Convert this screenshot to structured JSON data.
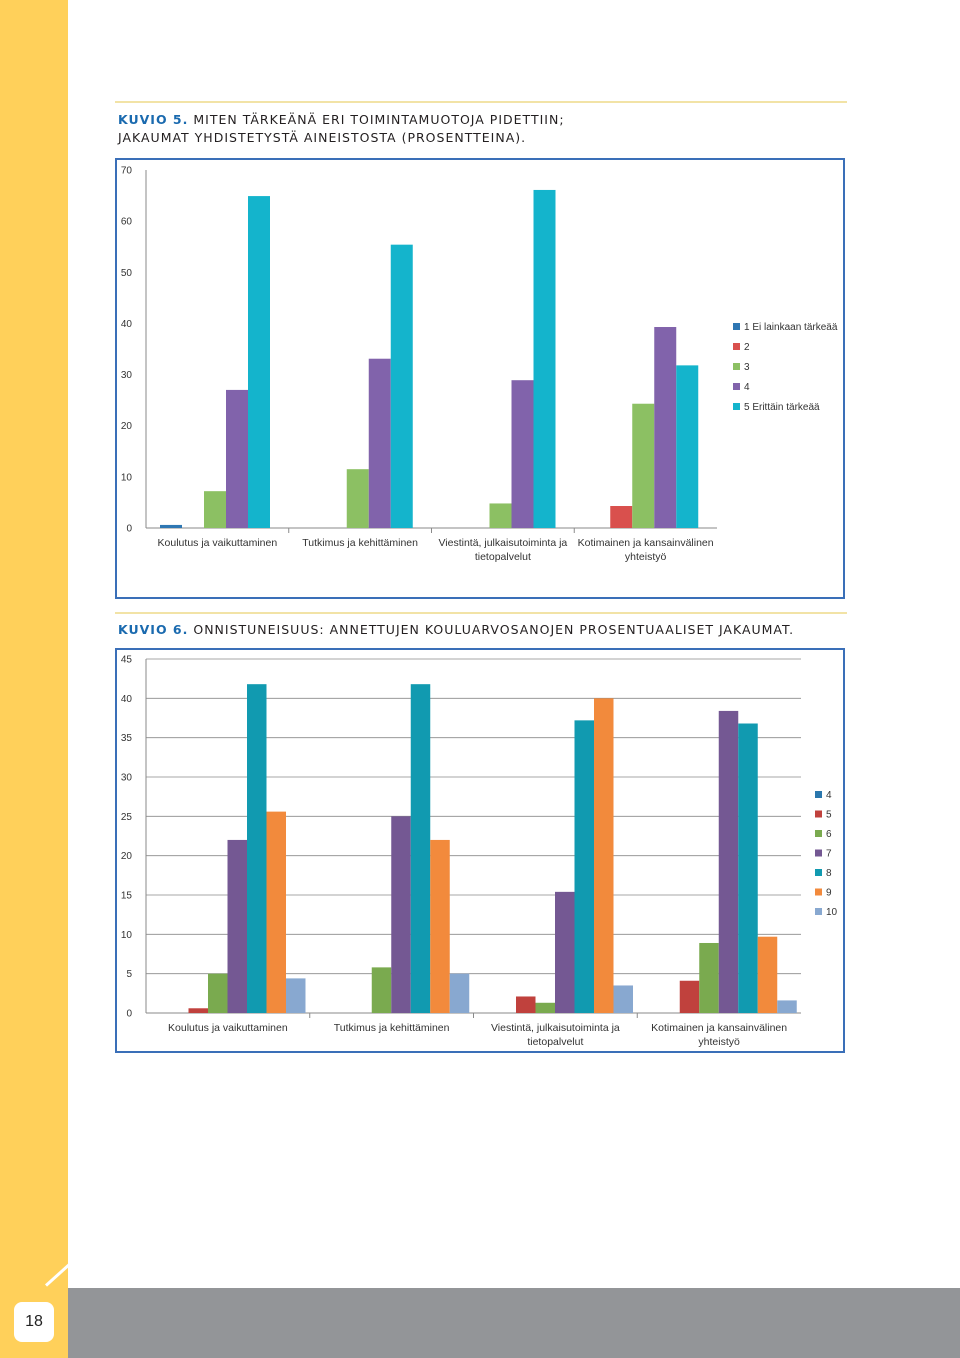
{
  "page": {
    "number": "18"
  },
  "figures": [
    {
      "kuvio": "KUVIO 5.",
      "caption_line1": "MITEN TÄRKEÄNÄ ERI TOIMINTAMUOTOJA PIDETTIIN;",
      "caption_line2": "JAKAUMAT YHDISTETYSTÄ AINEISTOSTA (PROSENTTEINA)."
    },
    {
      "kuvio": "KUVIO 6.",
      "caption_line1": "ONNISTUNEISUUS: ANNETTUJEN KOULUARVOSANOJEN PROSENTUAALISET JAKAUMAT.",
      "caption_line2": ""
    }
  ],
  "chart_data": [
    {
      "type": "bar",
      "categories": [
        [
          "Koulutus ja vaikuttaminen"
        ],
        [
          "Tutkimus ja kehittäminen"
        ],
        [
          "Viestintä, julkaisutoiminta ja",
          "tietopalvelut"
        ],
        [
          "Kotimainen ja kansainvälinen",
          "yhteistyö"
        ]
      ],
      "ylim": [
        0,
        70
      ],
      "yticks": [
        0,
        10,
        20,
        30,
        40,
        50,
        60,
        70
      ],
      "grid": false,
      "legend_position": "right",
      "series": [
        {
          "name": "1 Ei lainkaan tärkeää",
          "color": "#2e77b3",
          "values": [
            0.6,
            0,
            0,
            0
          ]
        },
        {
          "name": "2",
          "color": "#d9504d",
          "values": [
            0,
            0,
            0,
            4.3
          ]
        },
        {
          "name": "3",
          "color": "#8cc063",
          "values": [
            7.2,
            11.5,
            4.8,
            24.3
          ]
        },
        {
          "name": "4",
          "color": "#8163ab",
          "values": [
            27,
            33.1,
            28.9,
            39.3
          ]
        },
        {
          "name": "5 Erittäin tärkeää",
          "color": "#14b4cc",
          "values": [
            64.9,
            55.4,
            66.1,
            31.8
          ]
        }
      ]
    },
    {
      "type": "bar",
      "categories": [
        [
          "Koulutus ja vaikuttaminen"
        ],
        [
          "Tutkimus ja kehittäminen"
        ],
        [
          "Viestintä, julkaisutoiminta ja",
          "tietopalvelut"
        ],
        [
          "Kotimainen ja kansainvälinen",
          "yhteistyö"
        ]
      ],
      "ylim": [
        0,
        45
      ],
      "yticks": [
        0,
        5,
        10,
        15,
        20,
        25,
        30,
        35,
        40,
        45
      ],
      "grid": true,
      "legend_position": "right",
      "series": [
        {
          "name": "4",
          "color": "#2b77ad",
          "values": [
            0,
            0,
            0,
            0
          ]
        },
        {
          "name": "5",
          "color": "#c0413d",
          "values": [
            0.6,
            0,
            2.1,
            4.1
          ]
        },
        {
          "name": "6",
          "color": "#7aaa4f",
          "values": [
            5,
            5.8,
            1.3,
            8.9
          ]
        },
        {
          "name": "7",
          "color": "#745893",
          "values": [
            22,
            25,
            15.4,
            38.4
          ]
        },
        {
          "name": "8",
          "color": "#119ab0",
          "values": [
            41.8,
            41.8,
            37.2,
            36.8
          ]
        },
        {
          "name": "9",
          "color": "#f28a3c",
          "values": [
            25.6,
            22,
            40,
            9.7
          ]
        },
        {
          "name": "10",
          "color": "#88a8d0",
          "values": [
            4.4,
            5,
            3.5,
            1.6
          ]
        }
      ]
    }
  ]
}
